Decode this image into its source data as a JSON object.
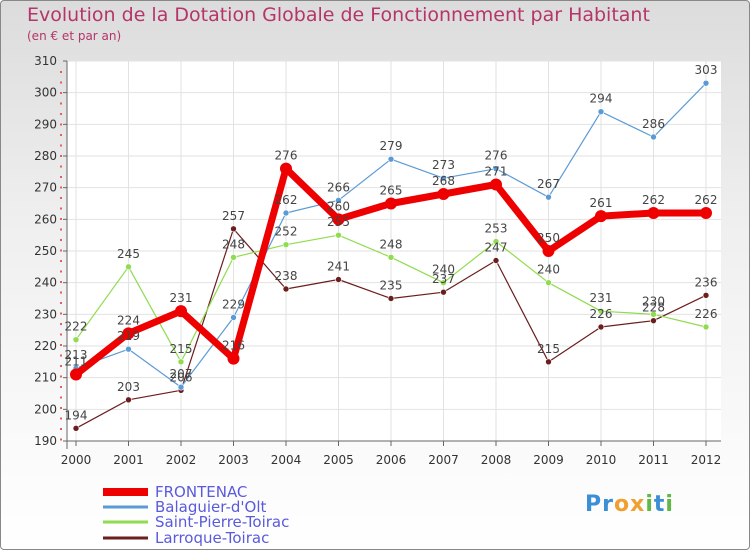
{
  "chart_data": {
    "type": "line",
    "title": "Evolution de la Dotation Globale de Fonctionnement par Habitant",
    "subtitle": "(en € et par an)",
    "x": [
      "2000",
      "2001",
      "2002",
      "2003",
      "2004",
      "2005",
      "2006",
      "2007",
      "2008",
      "2009",
      "2010",
      "2011",
      "2012"
    ],
    "ylim": [
      190,
      310
    ],
    "yticks": [
      190,
      200,
      210,
      220,
      230,
      240,
      250,
      260,
      270,
      280,
      290,
      300,
      310
    ],
    "grid": true,
    "series": [
      {
        "name": "FRONTENAC",
        "color": "#ee0000",
        "values": [
          211,
          224,
          231,
          216,
          276,
          260,
          265,
          268,
          271,
          250,
          261,
          262,
          262
        ]
      },
      {
        "name": "Balaguier-d'Olt",
        "color": "#5b9bd5",
        "values": [
          213,
          219,
          207,
          229,
          262,
          266,
          279,
          273,
          276,
          267,
          294,
          286,
          303
        ]
      },
      {
        "name": "Saint-Pierre-Toirac",
        "color": "#8fdc4f",
        "values": [
          222,
          245,
          215,
          248,
          252,
          255,
          248,
          240,
          253,
          240,
          231,
          230,
          226
        ]
      },
      {
        "name": "Larroque-Toirac",
        "color": "#6b1e1e",
        "values": [
          194,
          203,
          206,
          257,
          238,
          241,
          235,
          237,
          247,
          215,
          226,
          228,
          236
        ]
      }
    ]
  },
  "logo": {
    "letters": [
      "P",
      "r",
      "o",
      "x",
      "i",
      "t",
      "i"
    ],
    "colors": [
      "#3a8fd6",
      "#3a8fd6",
      "#f0a030",
      "#f0a030",
      "#62b846",
      "#3a8fd6",
      "#62b846"
    ]
  }
}
